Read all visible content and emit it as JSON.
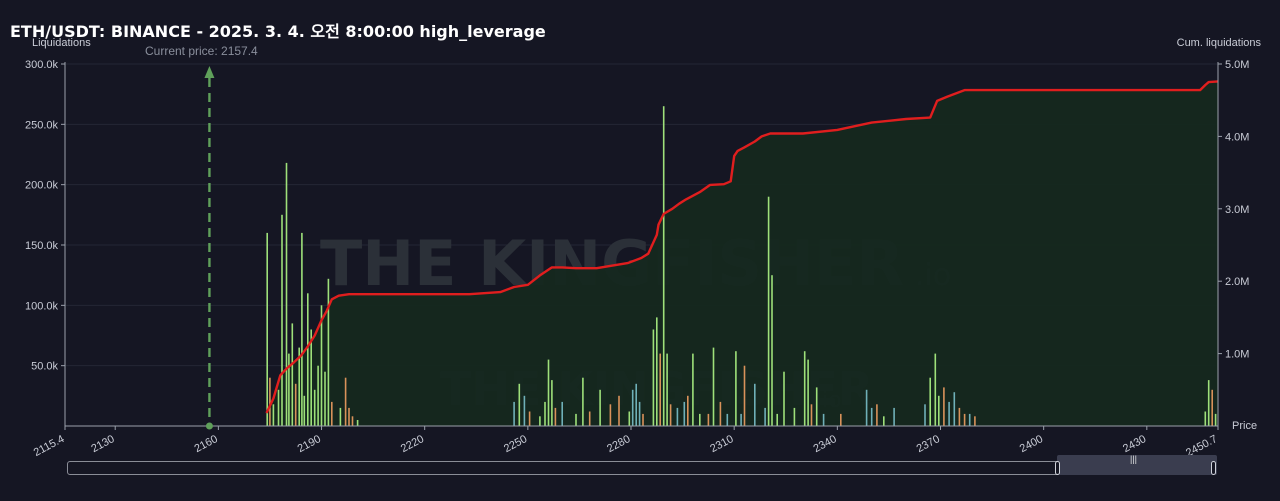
{
  "title": "ETH/USDT: BINANCE - 2025. 3. 4. 오전 8:00:00 high_leverage",
  "current_price_label": "Current price: 2157.4",
  "watermark": {
    "main": "THE KINGFISHER",
    "suffix": ".io"
  },
  "colors": {
    "background": "#151623",
    "cum_line": "#e01e1e",
    "area_fill": "#15281f",
    "current_price": "#5fa05a",
    "bar_green": "#9ee07a",
    "bar_teal": "#6fb0b8",
    "bar_orange": "#d9925a"
  },
  "chart_data": {
    "type": "bar",
    "title": "ETH/USDT: BINANCE - 2025. 3. 4. 오전 8:00:00 high_leverage",
    "xlabel": "Price",
    "ylabel": "Liquidations",
    "y2label": "Cum. liquidations",
    "xlim": [
      2115.4,
      2450.7
    ],
    "ylim": [
      0,
      300000
    ],
    "y2lim": [
      0,
      5000000
    ],
    "x_ticks": [
      "2115.4",
      "2130",
      "2160",
      "2190",
      "2220",
      "2250",
      "2280",
      "2310",
      "2340",
      "2370",
      "2400",
      "2430",
      "2450.7"
    ],
    "x_tick_values": [
      2115.4,
      2130,
      2160,
      2190,
      2220,
      2250,
      2280,
      2310,
      2340,
      2370,
      2400,
      2430,
      2450.7
    ],
    "y_ticks": [
      "300.0k",
      "250.0k",
      "200.0k",
      "150.0k",
      "100.0k",
      "50.0k"
    ],
    "y_tick_values": [
      300000,
      250000,
      200000,
      150000,
      100000,
      50000
    ],
    "y2_ticks": [
      "5.0M",
      "4.0M",
      "3.0M",
      "2.0M",
      "1.0M"
    ],
    "y2_tick_values": [
      5000000,
      4000000,
      3000000,
      2000000,
      1000000
    ],
    "current_price": 2157.4,
    "bars": [
      {
        "x": 2174.2,
        "v": 160000,
        "c": "green"
      },
      {
        "x": 2175.0,
        "v": 40000,
        "c": "orange"
      },
      {
        "x": 2176.0,
        "v": 18000,
        "c": "green"
      },
      {
        "x": 2177.5,
        "v": 30000,
        "c": "green"
      },
      {
        "x": 2178.5,
        "v": 175000,
        "c": "green"
      },
      {
        "x": 2179.8,
        "v": 218000,
        "c": "green"
      },
      {
        "x": 2180.5,
        "v": 60000,
        "c": "green"
      },
      {
        "x": 2181.5,
        "v": 85000,
        "c": "green"
      },
      {
        "x": 2182.5,
        "v": 35000,
        "c": "orange"
      },
      {
        "x": 2183.5,
        "v": 65000,
        "c": "green"
      },
      {
        "x": 2184.3,
        "v": 160000,
        "c": "green"
      },
      {
        "x": 2185.0,
        "v": 25000,
        "c": "green"
      },
      {
        "x": 2186.0,
        "v": 110000,
        "c": "green"
      },
      {
        "x": 2187.0,
        "v": 80000,
        "c": "green"
      },
      {
        "x": 2188.0,
        "v": 30000,
        "c": "green"
      },
      {
        "x": 2189.0,
        "v": 50000,
        "c": "green"
      },
      {
        "x": 2190.0,
        "v": 100000,
        "c": "green"
      },
      {
        "x": 2191.0,
        "v": 45000,
        "c": "green"
      },
      {
        "x": 2192.0,
        "v": 122000,
        "c": "green"
      },
      {
        "x": 2193.0,
        "v": 20000,
        "c": "orange"
      },
      {
        "x": 2195.5,
        "v": 15000,
        "c": "green"
      },
      {
        "x": 2197.0,
        "v": 40000,
        "c": "orange"
      },
      {
        "x": 2198.0,
        "v": 15000,
        "c": "orange"
      },
      {
        "x": 2199.0,
        "v": 8000,
        "c": "orange"
      },
      {
        "x": 2200.5,
        "v": 5000,
        "c": "green"
      },
      {
        "x": 2246.0,
        "v": 20000,
        "c": "teal"
      },
      {
        "x": 2247.5,
        "v": 35000,
        "c": "green"
      },
      {
        "x": 2249.0,
        "v": 25000,
        "c": "teal"
      },
      {
        "x": 2250.5,
        "v": 12000,
        "c": "orange"
      },
      {
        "x": 2253.5,
        "v": 8000,
        "c": "green"
      },
      {
        "x": 2255.0,
        "v": 20000,
        "c": "green"
      },
      {
        "x": 2256.0,
        "v": 55000,
        "c": "green"
      },
      {
        "x": 2257.0,
        "v": 38000,
        "c": "green"
      },
      {
        "x": 2258.0,
        "v": 15000,
        "c": "orange"
      },
      {
        "x": 2260.0,
        "v": 20000,
        "c": "teal"
      },
      {
        "x": 2264.0,
        "v": 10000,
        "c": "green"
      },
      {
        "x": 2266.0,
        "v": 40000,
        "c": "green"
      },
      {
        "x": 2268.0,
        "v": 12000,
        "c": "orange"
      },
      {
        "x": 2271.0,
        "v": 30000,
        "c": "green"
      },
      {
        "x": 2274.0,
        "v": 18000,
        "c": "orange"
      },
      {
        "x": 2276.5,
        "v": 25000,
        "c": "orange"
      },
      {
        "x": 2279.5,
        "v": 12000,
        "c": "green"
      },
      {
        "x": 2280.5,
        "v": 30000,
        "c": "teal"
      },
      {
        "x": 2281.5,
        "v": 35000,
        "c": "teal"
      },
      {
        "x": 2282.5,
        "v": 20000,
        "c": "teal"
      },
      {
        "x": 2283.5,
        "v": 10000,
        "c": "orange"
      },
      {
        "x": 2286.5,
        "v": 80000,
        "c": "green"
      },
      {
        "x": 2287.5,
        "v": 90000,
        "c": "green"
      },
      {
        "x": 2288.5,
        "v": 60000,
        "c": "orange"
      },
      {
        "x": 2289.5,
        "v": 265000,
        "c": "green"
      },
      {
        "x": 2290.5,
        "v": 60000,
        "c": "green"
      },
      {
        "x": 2291.5,
        "v": 18000,
        "c": "orange"
      },
      {
        "x": 2293.5,
        "v": 15000,
        "c": "teal"
      },
      {
        "x": 2295.5,
        "v": 20000,
        "c": "teal"
      },
      {
        "x": 2296.5,
        "v": 25000,
        "c": "orange"
      },
      {
        "x": 2298.0,
        "v": 60000,
        "c": "green"
      },
      {
        "x": 2300.0,
        "v": 10000,
        "c": "green"
      },
      {
        "x": 2302.5,
        "v": 10000,
        "c": "orange"
      },
      {
        "x": 2304.0,
        "v": 65000,
        "c": "green"
      },
      {
        "x": 2306.0,
        "v": 20000,
        "c": "orange"
      },
      {
        "x": 2308.0,
        "v": 10000,
        "c": "teal"
      },
      {
        "x": 2310.5,
        "v": 62000,
        "c": "green"
      },
      {
        "x": 2312.0,
        "v": 10000,
        "c": "teal"
      },
      {
        "x": 2313.0,
        "v": 50000,
        "c": "orange"
      },
      {
        "x": 2316.0,
        "v": 35000,
        "c": "teal"
      },
      {
        "x": 2319.0,
        "v": 15000,
        "c": "teal"
      },
      {
        "x": 2320.0,
        "v": 190000,
        "c": "green"
      },
      {
        "x": 2321.0,
        "v": 125000,
        "c": "green"
      },
      {
        "x": 2322.5,
        "v": 10000,
        "c": "green"
      },
      {
        "x": 2324.5,
        "v": 45000,
        "c": "green"
      },
      {
        "x": 2327.5,
        "v": 15000,
        "c": "green"
      },
      {
        "x": 2330.5,
        "v": 62000,
        "c": "green"
      },
      {
        "x": 2331.5,
        "v": 55000,
        "c": "green"
      },
      {
        "x": 2332.5,
        "v": 18000,
        "c": "orange"
      },
      {
        "x": 2334.0,
        "v": 32000,
        "c": "green"
      },
      {
        "x": 2336.0,
        "v": 10000,
        "c": "teal"
      },
      {
        "x": 2341.0,
        "v": 10000,
        "c": "orange"
      },
      {
        "x": 2348.5,
        "v": 30000,
        "c": "teal"
      },
      {
        "x": 2350.0,
        "v": 15000,
        "c": "teal"
      },
      {
        "x": 2351.5,
        "v": 18000,
        "c": "orange"
      },
      {
        "x": 2353.5,
        "v": 8000,
        "c": "green"
      },
      {
        "x": 2356.5,
        "v": 15000,
        "c": "teal"
      },
      {
        "x": 2365.5,
        "v": 18000,
        "c": "teal"
      },
      {
        "x": 2367.0,
        "v": 40000,
        "c": "green"
      },
      {
        "x": 2368.5,
        "v": 60000,
        "c": "green"
      },
      {
        "x": 2369.5,
        "v": 25000,
        "c": "green"
      },
      {
        "x": 2371.0,
        "v": 32000,
        "c": "orange"
      },
      {
        "x": 2372.5,
        "v": 20000,
        "c": "teal"
      },
      {
        "x": 2374.0,
        "v": 28000,
        "c": "teal"
      },
      {
        "x": 2375.5,
        "v": 15000,
        "c": "orange"
      },
      {
        "x": 2377.0,
        "v": 10000,
        "c": "orange"
      },
      {
        "x": 2378.5,
        "v": 10000,
        "c": "teal"
      },
      {
        "x": 2380.0,
        "v": 8000,
        "c": "orange"
      },
      {
        "x": 2447.0,
        "v": 12000,
        "c": "green"
      },
      {
        "x": 2448.0,
        "v": 38000,
        "c": "green"
      },
      {
        "x": 2449.0,
        "v": 30000,
        "c": "orange"
      },
      {
        "x": 2450.0,
        "v": 10000,
        "c": "green"
      }
    ],
    "cumulative": {
      "x": [
        2174.0,
        2176.0,
        2178.0,
        2180.0,
        2182.0,
        2184.0,
        2186.0,
        2188.0,
        2190.0,
        2191.5,
        2193.0,
        2195.0,
        2198.0,
        2203.0,
        2213.0,
        2223.0,
        2233.0,
        2242.0,
        2246.0,
        2250.0,
        2253.5,
        2257.0,
        2260.0,
        2264.0,
        2270.0,
        2279.0,
        2283.0,
        2285.0,
        2287.5,
        2288.0,
        2289.5,
        2292.0,
        2294.0,
        2296.0,
        2300.0,
        2303.0,
        2307.0,
        2309.0,
        2310.0,
        2311.0,
        2313.0,
        2316.0,
        2318.0,
        2320.5,
        2324.0,
        2327.0,
        2330.0,
        2340.0,
        2350.0,
        2360.0,
        2367.0,
        2369.0,
        2372.0,
        2377.0,
        2380.0,
        2400.0,
        2420.0,
        2445.5,
        2447.0,
        2448.0,
        2450.7
      ],
      "y": [
        180000,
        380000,
        700000,
        800000,
        880000,
        970000,
        1100000,
        1250000,
        1460000,
        1590000,
        1750000,
        1800000,
        1820000,
        1820000,
        1820000,
        1820000,
        1820000,
        1850000,
        1920000,
        1950000,
        2080000,
        2190000,
        2190000,
        2180000,
        2180000,
        2250000,
        2320000,
        2380000,
        2640000,
        2780000,
        2930000,
        3000000,
        3070000,
        3130000,
        3230000,
        3330000,
        3340000,
        3380000,
        3730000,
        3800000,
        3850000,
        3930000,
        4000000,
        4040000,
        4040000,
        4040000,
        4040000,
        4090000,
        4190000,
        4240000,
        4260000,
        4490000,
        4550000,
        4640000,
        4640000,
        4640000,
        4640000,
        4640000,
        4710000,
        4750000,
        4760000
      ]
    }
  }
}
